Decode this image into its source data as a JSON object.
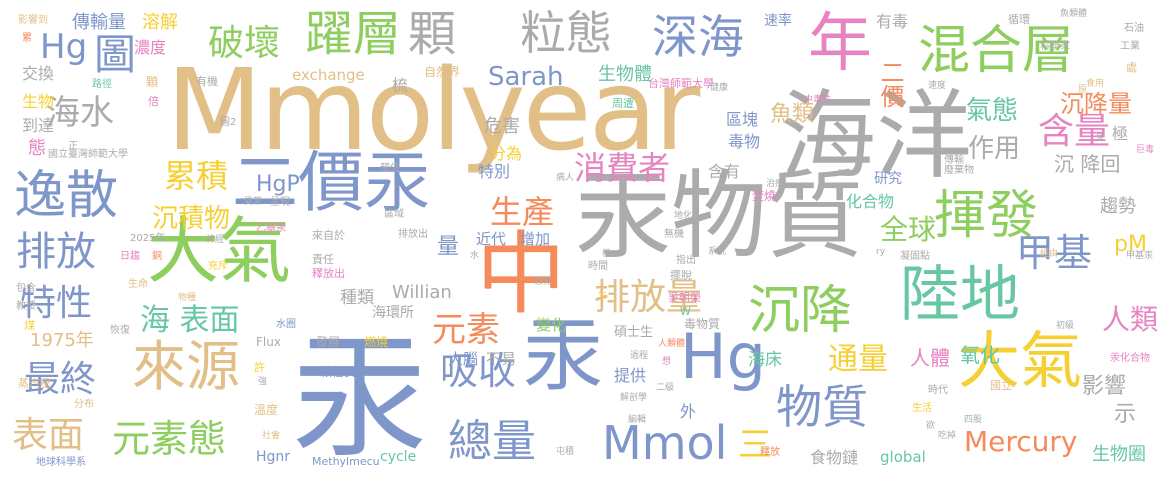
{
  "palette": {
    "tan": "#e2bf86",
    "blue": "#7f96cb",
    "gray": "#ababab",
    "green": "#8ece5f",
    "orange": "#f58a5b",
    "pink": "#e584c1",
    "teal": "#66c7a2",
    "yellow": "#f6d033"
  },
  "words": {
    "mmolyear": "Mmolyear",
    "hai_yang": "海洋",
    "gong": "汞",
    "gong_wu_zhi": "汞物質",
    "zhong_orange": "中",
    "da_qi_left": "大氣",
    "da_qi_right": "大氣",
    "er_jia_gong": "二價汞",
    "lu_di": "陸地",
    "hg_big": "Hg",
    "gong_mid": "汞",
    "hui_fa": "揮發",
    "yi_san": "逸散",
    "hun_he_ceng": "混合層",
    "lai_yuan": "來源",
    "chen_jiang": "沉降",
    "mmol": "Mmol",
    "wu_zhi": "物質",
    "zong_liang": "總量",
    "yue_ceng": "躍層",
    "li_tai": "粒態",
    "ke": "顆",
    "shen_hai": "深海",
    "nian": "年",
    "pai_fang": "排放",
    "yuan_su_tai": "元素態",
    "xi_shou": "吸收",
    "jia_ji": "甲基",
    "pai_fang_liang": "排放量",
    "yuan_su": "元素",
    "te_xing": "特性",
    "zui_zhong": "最終",
    "biao_mian": "表面",
    "hai_biao_mian": "海 表面",
    "lei_ji": "累積",
    "xiao_fei_zhe": "消費者",
    "sheng_chan": "生產",
    "po_huai": "破壞",
    "tu": "圖",
    "hg_small": "Hg",
    "hai_shui": "海水",
    "han_liang": "含量",
    "qi_tai": "氣態",
    "tong_liang": "通量",
    "mercury": "Mercury",
    "ren_lei": "人類",
    "chen_ji_wu": "沉積物",
    "quan_qiu": "全球",
    "zuo_yong": "作用",
    "chen_jiang_liang": "沉降量",
    "sarah": "Sarah",
    "hgp": "HgP",
    "pm": "pM",
    "liang": "量",
    "san": "三",
    "er_jia": "二價",
    "yu_lei": "魚類",
    "yu_1975": "1975年",
    "willian": "Willian",
    "zhong_lei": "種類",
    "hai_huan_suo": "海環所",
    "hai_chuang": "海床",
    "ren_ti": "人體",
    "yang_hua": "氧化",
    "ying_xiang": "影響",
    "shi": "示",
    "sheng_wu_quan": "生物圈",
    "shi_wu_lian": "食物鏈",
    "global": "global",
    "cycle": "cycle",
    "hgnr": "Hgnr",
    "methylmecu": "Methylmecu",
    "exchange": "exchange",
    "sheng_wu_ti": "生物體",
    "chuan_shu_liang": "傳輸量",
    "rong_jie": "溶解",
    "nong_du": "濃度",
    "jiao_huan": "交換",
    "sheng_wu": "生物",
    "dao_da": "到達",
    "tai": "態",
    "wei_hai": "危害",
    "fen_wei": "分為",
    "te_bie": "特別",
    "han_you": "含有",
    "hua_he_wu": "化合物",
    "jin_dai": "近代",
    "zeng_jia": "增加",
    "bian_hua": "變化",
    "da_nao": "大腦",
    "bu_yi": "不易",
    "ti_gong": "提供",
    "wai": "外",
    "qu_kuai": "區塊",
    "du_wu": "毒物",
    "you_du": "有毒",
    "su_lu": "速率",
    "yan_jiu": "研究",
    "chen_jiang_hui": "沉 降回",
    "qu_shi": "趨勢",
    "ji": "極",
    "ying_xiang_dao": "影響到",
    "lei": "累",
    "mo_shao": "末梢",
    "zhi_shi": "知識",
    "xing_qu": "興趣",
    "xun_huan": "循環",
    "yu_lei_ti": "魚類體",
    "shi_you": "石油",
    "gong_ye": "工業",
    "ke_xue_jia": "科學家",
    "chu": "處",
    "lu_jing": "路徑",
    "ke_small": "顆",
    "bei": "倍",
    "you_ji": "有機",
    "shu": "梳",
    "zi_ran_jie": "自然界",
    "tai_shi_da": "台灣師範大學",
    "jian_kang": "健康",
    "zhou_zao": "周遭",
    "chen": "沉",
    "zhong_du_xing": "中毒性",
    "su_du": "速度",
    "tu2": "圖2",
    "guo_li_tai_shi_da": "國立臺灣師範大學",
    "yu_ji": "預估",
    "bing_ren": "病人",
    "ji_mo": "极",
    "fen_shao": "焚燒",
    "yi_chang": "異常",
    "cheng_xian": "呈現",
    "qu_yu": "區域",
    "yi_ji_gong": "乙基汞",
    "shen_jing": "神經",
    "lai_zi_yu": "來自於",
    "ze_ren": "責任",
    "shi_fang_chu": "釋放出",
    "pai_fang_chu": "排放出",
    "shui": "水",
    "gan_ying": "感覺",
    "sheng": "生",
    "shuo_shi_sheng": "碩士生",
    "wu_chao_rong": "吳朝榮",
    "zhi_chu": "指出",
    "xi_tong": "系統",
    "bai_tuo": "擺脫",
    "di_hua": "地化",
    "wu_ji": "無機",
    "zhi_liao": "治療",
    "chuan_wu": "傳輸",
    "fei_qi_wu": "廢棄物",
    "ning_gu_dian": "凝固點",
    "jia_ji_gong": "甲基汞",
    "jing_you": "經由",
    "jiao_shou": "教授",
    "bao_he": "包含",
    "mei": "煤",
    "hui_fu": "恢復",
    "shui_mo": "水圈",
    "flux": "Flux",
    "fa_zhan": "發展",
    "ran_shao": "燃燒",
    "du_wu_zhi": "毒物質",
    "ren_lei_small": "人類體",
    "guo_cheng": "過程",
    "xiang": "想",
    "er_ji": "二級",
    "jie_xi_xue": "解剖學",
    "bian_ji": "編輯",
    "shi_jian": "時間",
    "tun_ji": "屯積",
    "chu_ji": "初級",
    "gong_hua_he_wu": "汞化合物",
    "shi_dai": "時代",
    "guo_li": "國立",
    "sheng_huo": "生活",
    "si_gu": "四股",
    "chi_dian": "吃掉",
    "yu_small": "欲",
    "shi_fang": "釋放",
    "zheng_qi_ji": "蒸汽壓",
    "fen_bu": "分布",
    "di_qiu_ke_xue_xi": "地球科學系",
    "lai_xin_an": "賴信安",
    "she_hui": "社會",
    "wen_du": "溫度",
    "qiang": "強",
    "xu": "許",
    "chong_chi": "充斥",
    "sheng_ming": "生命",
    "wu_zhong": "物種",
    "tong": "銅",
    "ri_qu": "日趨",
    "yu_2025": "2025年",
    "shi_small": "使",
    "ju_zhu": "巨毒",
    "zheng": "正",
    "yuan": "原",
    "shi_yong": "食用",
    "ry": "ry",
    "w": "W"
  }
}
